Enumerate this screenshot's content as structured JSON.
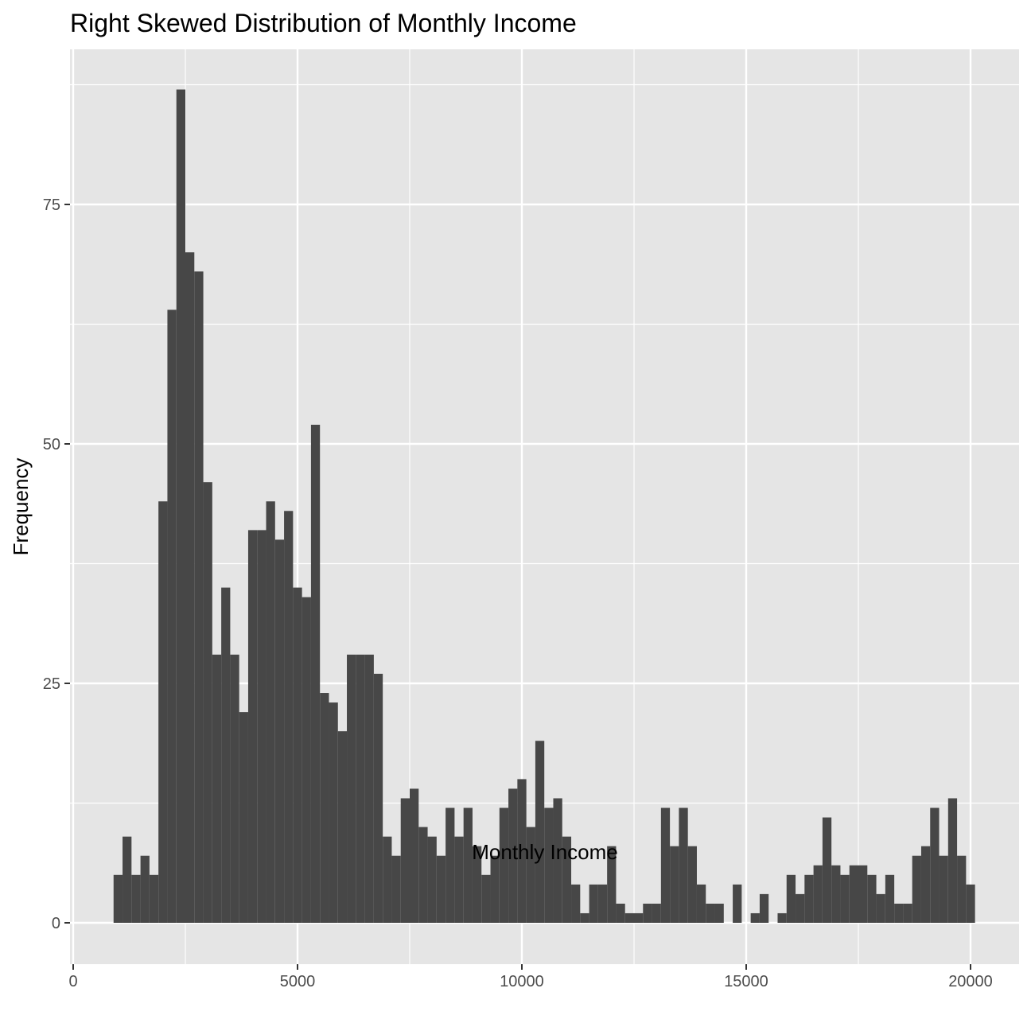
{
  "chart_data": {
    "type": "histogram",
    "title": "Right Skewed Distribution of Monthly Income",
    "xlabel": "Monthly Income",
    "ylabel": "Frequency",
    "xlim": [
      0,
      21000
    ],
    "ylim": [
      -4,
      87
    ],
    "x_ticks": [
      0,
      5000,
      10000,
      15000,
      20000
    ],
    "y_ticks": [
      0,
      25,
      50,
      75
    ],
    "grid": true,
    "bin_width": 200,
    "bin_start": 900,
    "counts": [
      5,
      9,
      5,
      7,
      5,
      44,
      64,
      87,
      70,
      68,
      46,
      28,
      35,
      28,
      22,
      41,
      41,
      44,
      40,
      43,
      35,
      34,
      52,
      24,
      23,
      20,
      28,
      28,
      28,
      26,
      9,
      7,
      13,
      14,
      10,
      9,
      7,
      12,
      9,
      12,
      8,
      5,
      7,
      12,
      14,
      15,
      10,
      19,
      12,
      13,
      9,
      4,
      1,
      4,
      4,
      8,
      2,
      1,
      1,
      2,
      2,
      12,
      8,
      12,
      8,
      4,
      2,
      2,
      0,
      4,
      0,
      1,
      3,
      0,
      1,
      5,
      3,
      5,
      6,
      11,
      6,
      5,
      6,
      6,
      5,
      3,
      5,
      2,
      2,
      7,
      8,
      12,
      7,
      13,
      7,
      4
    ],
    "bar_color": "#474747",
    "panel_color": "#e5e5e5",
    "grid_color": "#ffffff"
  }
}
